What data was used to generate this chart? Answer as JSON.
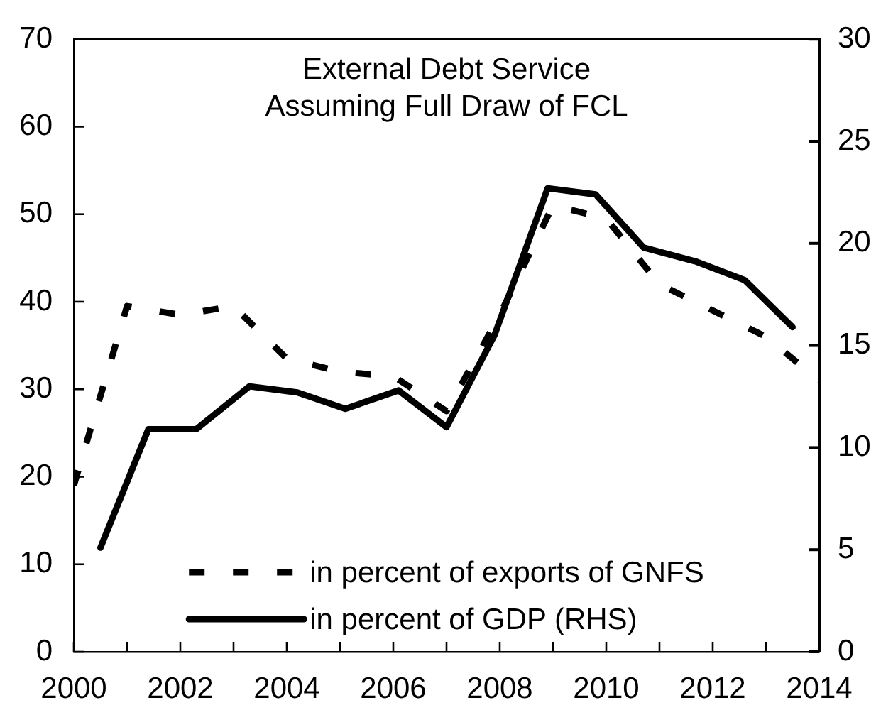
{
  "chart_data": {
    "type": "line",
    "title": "External Debt Service",
    "subtitle": "Assuming Full Draw of FCL",
    "x": [
      2000,
      2001,
      2002,
      2003,
      2004,
      2005,
      2006,
      2007,
      2008,
      2009,
      2010,
      2011,
      2012,
      2013,
      2014
    ],
    "series": [
      {
        "name": "in percent of exports of GNFS",
        "color": "#000000",
        "line_style": "dashed",
        "values": [
          19,
          39.5,
          38.5,
          39.5,
          33.5,
          32,
          31.5,
          27.5,
          38.5,
          51,
          49.5,
          42,
          39,
          36,
          31
        ]
      },
      {
        "name": "in percent of GDP (RHS)",
        "color": "#000000",
        "line_style": "solid",
        "axis": "y2",
        "x": [
          2000.5,
          2001.4,
          2002.3,
          2003.3,
          2004.2,
          2005.1,
          2006.1,
          2007,
          2007.9,
          2008.9,
          2009.8,
          2010.7,
          2011.7,
          2012.6,
          2013.5
        ],
        "values": [
          5.1,
          10.9,
          10.9,
          13.0,
          12.7,
          11.9,
          12.8,
          11.0,
          15.5,
          22.7,
          22.4,
          19.8,
          19.1,
          18.2,
          15.9
        ]
      }
    ],
    "xlim": [
      2000,
      2014
    ],
    "xticks": [
      2000,
      {
        "value": 2001,
        "label": null
      },
      2002,
      {
        "value": 2003,
        "label": null
      },
      2004,
      {
        "value": 2005,
        "label": null
      },
      2006,
      {
        "value": 2007,
        "label": null
      },
      2008,
      {
        "value": 2009,
        "label": null
      },
      2010,
      {
        "value": 2011,
        "label": null
      },
      2012,
      {
        "value": 2013,
        "label": null
      },
      2014
    ],
    "ylim": [
      0,
      70
    ],
    "yticks": [
      0,
      10,
      20,
      30,
      40,
      50,
      60,
      70
    ],
    "y2lim": [
      0,
      30
    ],
    "y2ticks": [
      0,
      5,
      10,
      15,
      20,
      25,
      30
    ],
    "legend": "bottom"
  }
}
